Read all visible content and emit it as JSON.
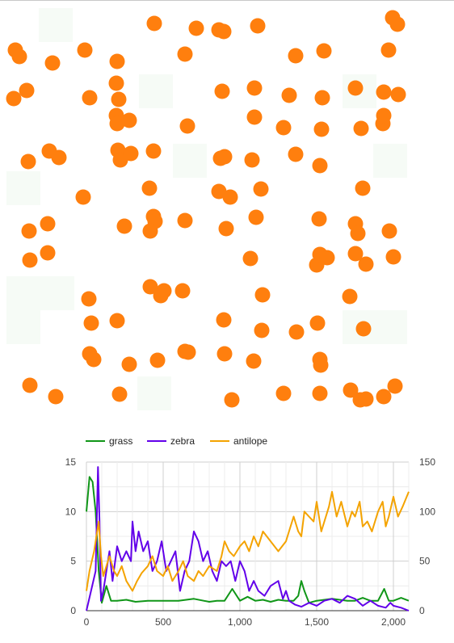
{
  "simulation": {
    "grass_color": "#f6fbf6",
    "agent_color": "#ff7f0e",
    "agents": [
      [
        492,
        30
      ],
      [
        486,
        22
      ],
      [
        191,
        29
      ],
      [
        243,
        35
      ],
      [
        271,
        37
      ],
      [
        277,
        39
      ],
      [
        319,
        32
      ],
      [
        19,
        62
      ],
      [
        24,
        70
      ],
      [
        105,
        62
      ],
      [
        65,
        78
      ],
      [
        145,
        76
      ],
      [
        229,
        67
      ],
      [
        366,
        69
      ],
      [
        401,
        63
      ],
      [
        481,
        62
      ],
      [
        17,
        122
      ],
      [
        33,
        112
      ],
      [
        111,
        121
      ],
      [
        144,
        103
      ],
      [
        147,
        123
      ],
      [
        275,
        113
      ],
      [
        315,
        109
      ],
      [
        358,
        118
      ],
      [
        399,
        121
      ],
      [
        440,
        109
      ],
      [
        475,
        114
      ],
      [
        493,
        117
      ],
      [
        144,
        143
      ],
      [
        145,
        153
      ],
      [
        160,
        149
      ],
      [
        232,
        156
      ],
      [
        315,
        145
      ],
      [
        351,
        158
      ],
      [
        398,
        160
      ],
      [
        447,
        159
      ],
      [
        474,
        153
      ],
      [
        475,
        143
      ],
      [
        35,
        200
      ],
      [
        61,
        187
      ],
      [
        73,
        195
      ],
      [
        146,
        186
      ],
      [
        149,
        198
      ],
      [
        162,
        190
      ],
      [
        190,
        187
      ],
      [
        273,
        196
      ],
      [
        278,
        194
      ],
      [
        312,
        198
      ],
      [
        366,
        191
      ],
      [
        396,
        205
      ],
      [
        103,
        244
      ],
      [
        185,
        233
      ],
      [
        271,
        237
      ],
      [
        285,
        244
      ],
      [
        323,
        234
      ],
      [
        449,
        233
      ],
      [
        36,
        286
      ],
      [
        59,
        277
      ],
      [
        154,
        280
      ],
      [
        190,
        268
      ],
      [
        192,
        274
      ],
      [
        186,
        286
      ],
      [
        229,
        273
      ],
      [
        280,
        283
      ],
      [
        317,
        269
      ],
      [
        395,
        271
      ],
      [
        440,
        277
      ],
      [
        443,
        289
      ],
      [
        482,
        286
      ],
      [
        37,
        322
      ],
      [
        59,
        313
      ],
      [
        310,
        320
      ],
      [
        392,
        328
      ],
      [
        396,
        315
      ],
      [
        405,
        319
      ],
      [
        440,
        314
      ],
      [
        453,
        327
      ],
      [
        487,
        318
      ],
      [
        186,
        355
      ],
      [
        203,
        360
      ],
      [
        199,
        366
      ],
      [
        226,
        360
      ],
      [
        325,
        365
      ],
      [
        433,
        367
      ],
      [
        110,
        370
      ],
      [
        113,
        400
      ],
      [
        145,
        397
      ],
      [
        277,
        396
      ],
      [
        324,
        409
      ],
      [
        367,
        411
      ],
      [
        393,
        400
      ],
      [
        450,
        407
      ],
      [
        111,
        438
      ],
      [
        116,
        445
      ],
      [
        160,
        451
      ],
      [
        195,
        446
      ],
      [
        229,
        435
      ],
      [
        233,
        436
      ],
      [
        278,
        438
      ],
      [
        314,
        447
      ],
      [
        396,
        445
      ],
      [
        397,
        452
      ],
      [
        37,
        477
      ],
      [
        69,
        491
      ],
      [
        148,
        488
      ],
      [
        287,
        495
      ],
      [
        351,
        487
      ],
      [
        396,
        487
      ],
      [
        434,
        483
      ],
      [
        446,
        495
      ],
      [
        453,
        494
      ],
      [
        475,
        491
      ],
      [
        489,
        478
      ]
    ]
  },
  "chart_data": {
    "type": "line",
    "x_ticks": [
      "0",
      "500",
      "1,000",
      "1,500",
      "2,000"
    ],
    "x_tick_values": [
      0,
      500,
      1000,
      1500,
      2000
    ],
    "xlim": [
      0,
      2100
    ],
    "y_left_ticks": [
      "0",
      "5",
      "10",
      "15"
    ],
    "y_left_lim": [
      0,
      15
    ],
    "y_right_ticks": [
      "0",
      "50",
      "100",
      "150"
    ],
    "y_right_lim": [
      0,
      150
    ],
    "grid": true,
    "legend_position": "top",
    "series": [
      {
        "name": "grass",
        "axis": "left",
        "color": "#109618",
        "x": [
          0,
          20,
          40,
          60,
          80,
          100,
          130,
          160,
          200,
          260,
          320,
          400,
          500,
          600,
          700,
          800,
          850,
          900,
          950,
          1000,
          1050,
          1100,
          1150,
          1200,
          1250,
          1300,
          1350,
          1380,
          1400,
          1420,
          1450,
          1500,
          1550,
          1600,
          1650,
          1700,
          1750,
          1800,
          1850,
          1900,
          1940,
          1970,
          2000,
          2050,
          2100
        ],
        "y": [
          10,
          13.5,
          13,
          10,
          4,
          0.8,
          2.5,
          1,
          1,
          1.1,
          0.9,
          1,
          1,
          1,
          1.2,
          0.9,
          1,
          1,
          2.2,
          1,
          1.4,
          1,
          1.1,
          0.9,
          1.1,
          1,
          1,
          1.5,
          3,
          2,
          0.8,
          1,
          1.1,
          1.2,
          1.1,
          1,
          1,
          1.3,
          1,
          1,
          2.2,
          1,
          1,
          1.3,
          1
        ]
      },
      {
        "name": "zebra",
        "axis": "left",
        "color": "#6200ea",
        "x": [
          0,
          30,
          60,
          75,
          85,
          95,
          110,
          130,
          150,
          170,
          200,
          230,
          260,
          290,
          300,
          320,
          340,
          370,
          400,
          430,
          460,
          490,
          520,
          550,
          580,
          610,
          640,
          670,
          700,
          730,
          760,
          790,
          820,
          850,
          880,
          910,
          940,
          970,
          1000,
          1030,
          1060,
          1090,
          1120,
          1160,
          1200,
          1250,
          1280,
          1300,
          1320,
          1360,
          1400,
          1450,
          1500,
          1550,
          1600,
          1650,
          1700,
          1750,
          1800,
          1850,
          1900,
          1950,
          1980,
          2000,
          2050,
          2100
        ],
        "y": [
          0,
          2,
          4,
          14.5,
          9,
          1,
          2,
          4,
          6,
          3,
          6.5,
          5,
          6,
          5,
          9,
          6,
          8,
          6,
          7,
          4,
          5,
          7,
          4,
          5,
          6,
          2,
          4,
          5,
          8,
          7,
          5,
          6,
          4,
          3,
          5,
          4.5,
          5,
          3,
          5,
          4,
          2,
          3,
          2,
          1.5,
          2.5,
          3,
          1.2,
          2,
          1,
          0.6,
          0.4,
          0.8,
          0.5,
          1,
          1.2,
          0.8,
          1.5,
          1.2,
          0.5,
          1,
          0.5,
          0.3,
          0.8,
          0.5,
          0.3,
          0
        ]
      },
      {
        "name": "antilope",
        "axis": "right",
        "color": "#f4a300",
        "x": [
          0,
          20,
          50,
          80,
          95,
          110,
          130,
          150,
          180,
          200,
          230,
          260,
          300,
          330,
          360,
          400,
          430,
          460,
          500,
          530,
          560,
          600,
          630,
          660,
          700,
          730,
          760,
          800,
          850,
          880,
          900,
          930,
          960,
          1000,
          1030,
          1060,
          1090,
          1120,
          1150,
          1200,
          1250,
          1300,
          1330,
          1350,
          1380,
          1400,
          1420,
          1450,
          1480,
          1500,
          1530,
          1560,
          1580,
          1600,
          1630,
          1660,
          1700,
          1730,
          1750,
          1780,
          1800,
          1830,
          1860,
          1900,
          1930,
          1950,
          1970,
          2000,
          2030,
          2060,
          2100
        ],
        "y": [
          20,
          40,
          60,
          90,
          55,
          35,
          45,
          55,
          40,
          35,
          45,
          30,
          20,
          30,
          38,
          45,
          55,
          40,
          35,
          45,
          30,
          40,
          50,
          35,
          30,
          40,
          35,
          45,
          40,
          55,
          70,
          60,
          55,
          65,
          70,
          60,
          75,
          65,
          80,
          70,
          60,
          70,
          85,
          95,
          80,
          75,
          100,
          95,
          90,
          110,
          80,
          95,
          105,
          120,
          95,
          110,
          85,
          100,
          95,
          110,
          85,
          90,
          80,
          100,
          110,
          85,
          95,
          115,
          95,
          105,
          120
        ]
      }
    ]
  }
}
